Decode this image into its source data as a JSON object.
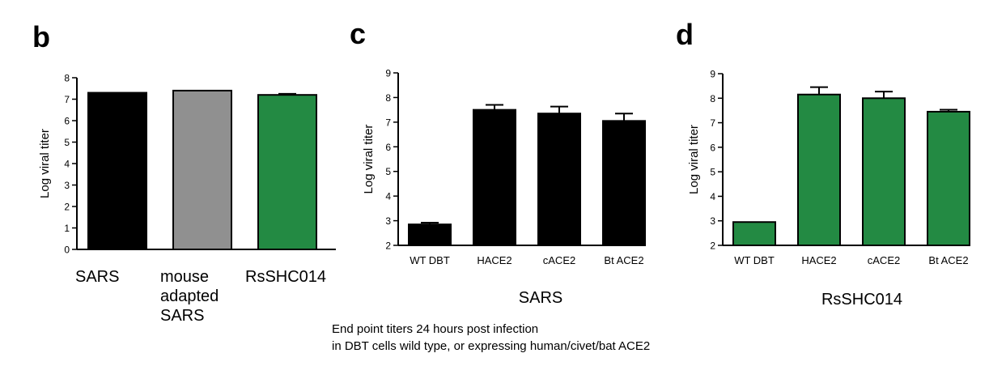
{
  "chart_data": [
    {
      "type": "bar",
      "panel_label": "b",
      "categories": [
        "SARS",
        "mouse adapted SARS",
        "RsSHC014"
      ],
      "category_lines": [
        [
          "SARS"
        ],
        [
          "mouse",
          "adapted",
          "SARS"
        ],
        [
          "RsSHC014"
        ]
      ],
      "values": [
        7.3,
        7.4,
        7.2
      ],
      "errors": [
        0,
        0,
        0.05
      ],
      "colors": [
        "#000000",
        "#909090",
        "#238a43"
      ],
      "ylabel": "Log viral titer",
      "ylim": [
        0,
        8
      ],
      "yticks": [
        "0",
        "1",
        "2",
        "3",
        "4",
        "5",
        "6",
        "7",
        "8"
      ],
      "xlabel": ""
    },
    {
      "type": "bar",
      "panel_label": "c",
      "categories": [
        "WT DBT",
        "HACE2",
        "cACE2",
        "Bt ACE2"
      ],
      "values": [
        2.85,
        7.5,
        7.35,
        7.05
      ],
      "errors": [
        0.07,
        0.2,
        0.28,
        0.3
      ],
      "colors": [
        "#000000",
        "#000000",
        "#000000",
        "#000000"
      ],
      "ylabel": "Log viral titer",
      "ylim": [
        2,
        9
      ],
      "yticks": [
        "2",
        "3",
        "4",
        "5",
        "6",
        "7",
        "8",
        "9"
      ],
      "xlabel": "SARS"
    },
    {
      "type": "bar",
      "panel_label": "d",
      "categories": [
        "WT DBT",
        "HACE2",
        "cACE2",
        "Bt ACE2"
      ],
      "values": [
        2.95,
        8.15,
        8.0,
        7.45
      ],
      "errors": [
        0,
        0.3,
        0.27,
        0.08
      ],
      "colors": [
        "#238a43",
        "#238a43",
        "#238a43",
        "#238a43"
      ],
      "ylabel": "Log viral titer",
      "ylim": [
        2,
        9
      ],
      "yticks": [
        "2",
        "3",
        "4",
        "5",
        "6",
        "7",
        "8",
        "9"
      ],
      "xlabel": "RsSHC014"
    }
  ],
  "caption": {
    "line1": "End point titers 24 hours post infection",
    "line2": "in DBT cells wild type, or expressing human/civet/bat ACE2"
  }
}
